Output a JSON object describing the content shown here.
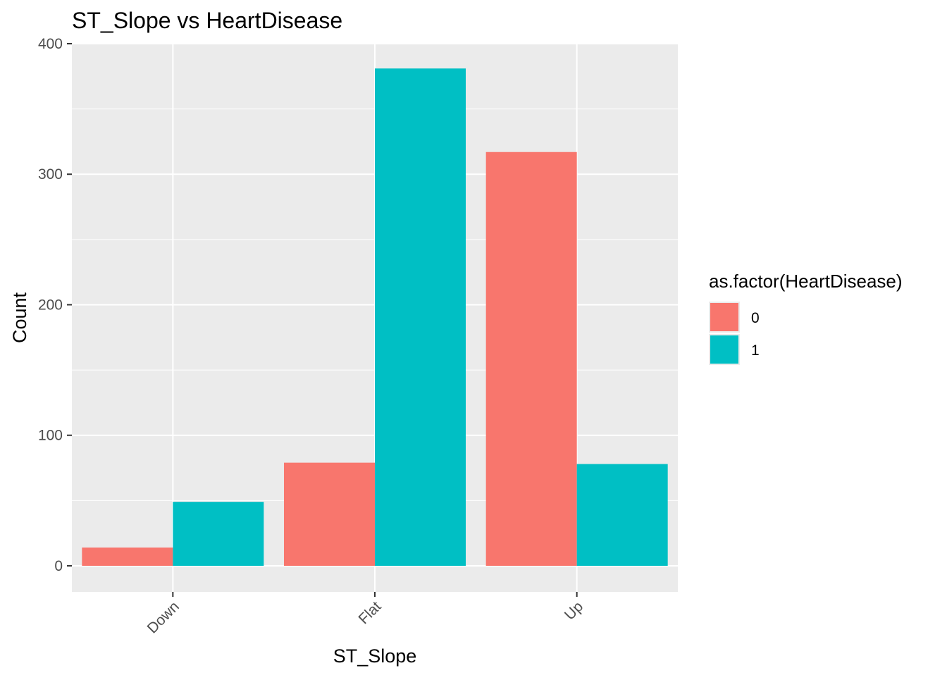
{
  "chart_data": {
    "type": "bar",
    "title": "ST_Slope vs HeartDisease",
    "xlabel": "ST_Slope",
    "ylabel": "Count",
    "categories": [
      "Down",
      "Flat",
      "Up"
    ],
    "series": [
      {
        "name": "0",
        "values": [
          14,
          79,
          317
        ],
        "color": "#F8766D"
      },
      {
        "name": "1",
        "values": [
          49,
          381,
          78
        ],
        "color": "#00BFC4"
      }
    ],
    "ylim": [
      -20,
      400
    ],
    "yticks": [
      0,
      100,
      200,
      300,
      400
    ],
    "legend": {
      "title": "as.factor(HeartDisease)",
      "position": "right"
    },
    "grid": true,
    "x_tick_rotation": "45-degrees"
  },
  "colors": {
    "panel_background": "#EBEBEB",
    "grid_line": "#FFFFFF",
    "tick_text": "#4D4D4D"
  }
}
